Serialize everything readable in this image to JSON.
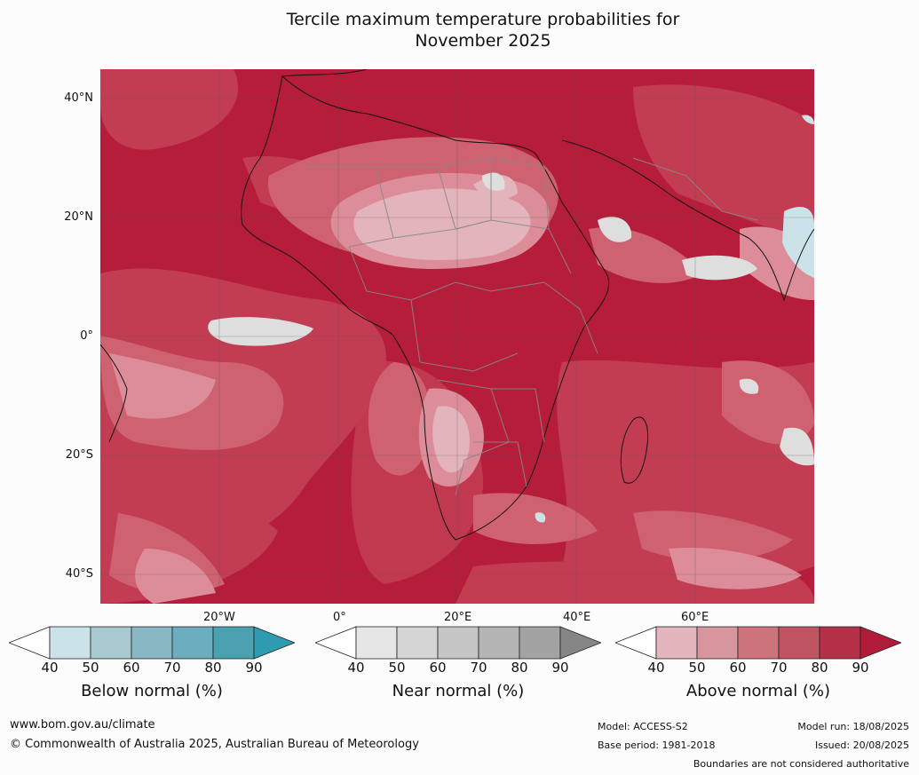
{
  "title_line1": "Tercile maximum temperature probabilities for",
  "title_line2": "November 2025",
  "map": {
    "lat_labels": [
      "40°N",
      "20°N",
      "0°",
      "20°S",
      "40°S"
    ],
    "lon_labels": [
      "20°W",
      "0°",
      "20°E",
      "40°E",
      "60°E"
    ],
    "colors": {
      "above_90": "#b51d3b",
      "above_80": "#c23d52",
      "above_70": "#cf6271",
      "above_60": "#dc8d99",
      "above_50": "#e4b4bd",
      "near": "#dedede",
      "below": "#cbe2e9"
    }
  },
  "colorbars": [
    {
      "title": "Below normal (%)",
      "ticks": [
        "40",
        "50",
        "60",
        "70",
        "80",
        "90"
      ],
      "colors": [
        "#cbe2e9",
        "#a9c9d1",
        "#89b7c4",
        "#6caebe",
        "#4ba1b0"
      ],
      "end_color": "#2e9bb0"
    },
    {
      "title": "Near normal (%)",
      "ticks": [
        "40",
        "50",
        "60",
        "70",
        "80",
        "90"
      ],
      "colors": [
        "#e6e6e6",
        "#d5d5d5",
        "#c5c5c5",
        "#b4b4b4",
        "#a3a3a3"
      ],
      "end_color": "#868686"
    },
    {
      "title": "Above normal (%)",
      "ticks": [
        "40",
        "50",
        "60",
        "70",
        "80",
        "90"
      ],
      "colors": [
        "#e3b6bd",
        "#d7959d",
        "#cd737b",
        "#c15463",
        "#b43049"
      ],
      "end_color": "#b21c3b"
    }
  ],
  "footer": {
    "website": "www.bom.gov.au/climate",
    "copyright": "© Commonwealth of Australia 2025, Australian Bureau of Meteorology",
    "model": "Model: ACCESS-S2",
    "base_period": "Base period: 1981-2018",
    "model_run": "Model run: 18/08/2025",
    "issued": "Issued: 20/08/2025",
    "disclaimer": "Boundaries are not considered authoritative"
  }
}
